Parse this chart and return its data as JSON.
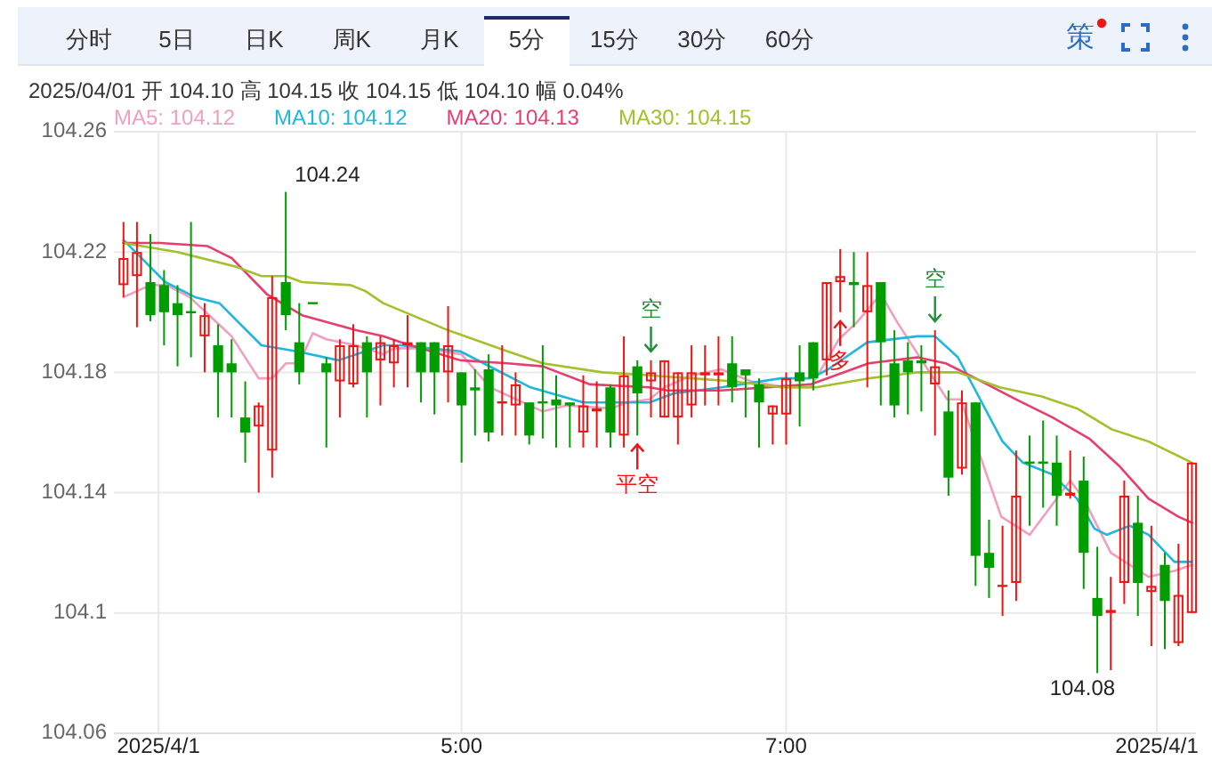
{
  "chart_data": {
    "type": "candlestick",
    "subtitle": "2025/04/01 开 104.10 高 104.15 收 104.15 低 104.10 幅 0.04%",
    "x": [
      2.917,
      3,
      3.083,
      3.167,
      3.25,
      3.333,
      3.417,
      3.5,
      3.583,
      3.667,
      3.75,
      3.833,
      3.917,
      4,
      4.083,
      4.167,
      4.25,
      4.333,
      4.417,
      4.5,
      4.583,
      4.667,
      4.75,
      4.833,
      4.917,
      5,
      5.083,
      5.167,
      5.25,
      5.333,
      5.417,
      5.5,
      5.583,
      5.667,
      5.75,
      5.833,
      5.917,
      6,
      6.083,
      6.167,
      6.25,
      6.333,
      6.417,
      6.5,
      6.583,
      6.667,
      6.75,
      6.833,
      6.917,
      7,
      7.083,
      7.167,
      7.25,
      7.333,
      7.417,
      7.5,
      7.583,
      7.667,
      7.75,
      7.833,
      7.917,
      8,
      8.083,
      8.167,
      8.25,
      8.333,
      8.417,
      8.5,
      8.583,
      8.667,
      8.75,
      8.833,
      8.917,
      9,
      9.083,
      9.167,
      9.25,
      9.333,
      9.417,
      9.5
    ],
    "ohlc": [
      [
        104.209,
        104.23,
        104.205,
        104.218
      ],
      [
        104.212,
        104.23,
        104.195,
        104.22
      ],
      [
        104.21,
        104.226,
        104.197,
        104.199
      ],
      [
        104.209,
        104.214,
        104.189,
        104.2
      ],
      [
        104.203,
        104.209,
        104.182,
        104.199
      ],
      [
        104.2,
        104.23,
        104.185,
        104.2
      ],
      [
        104.192,
        104.203,
        104.18,
        104.199
      ],
      [
        104.189,
        104.196,
        104.165,
        104.18
      ],
      [
        104.183,
        104.191,
        104.165,
        104.18
      ],
      [
        104.165,
        104.177,
        104.15,
        104.16
      ],
      [
        104.162,
        104.17,
        104.14,
        104.169
      ],
      [
        104.154,
        104.212,
        104.145,
        104.205
      ],
      [
        104.21,
        104.24,
        104.194,
        104.199
      ],
      [
        104.19,
        104.203,
        104.176,
        104.18
      ],
      [
        104.203,
        104.203,
        104.203,
        104.203
      ],
      [
        104.183,
        104.185,
        104.155,
        104.18
      ],
      [
        104.177,
        104.191,
        104.165,
        104.189
      ],
      [
        104.176,
        104.196,
        104.175,
        104.189
      ],
      [
        104.19,
        104.192,
        104.165,
        104.18
      ],
      [
        104.184,
        104.192,
        104.169,
        104.19
      ],
      [
        104.183,
        104.191,
        104.175,
        104.189
      ],
      [
        104.189,
        104.199,
        104.175,
        104.19
      ],
      [
        104.19,
        104.19,
        104.17,
        104.18
      ],
      [
        104.19,
        104.19,
        104.166,
        104.18
      ],
      [
        104.18,
        104.202,
        104.17,
        104.189
      ],
      [
        104.18,
        104.18,
        104.15,
        104.169
      ],
      [
        104.175,
        104.181,
        104.159,
        104.174
      ],
      [
        104.181,
        104.186,
        104.157,
        104.16
      ],
      [
        104.17,
        104.189,
        104.159,
        104.17
      ],
      [
        104.169,
        104.18,
        104.159,
        104.176
      ],
      [
        104.17,
        104.17,
        104.156,
        104.159
      ],
      [
        104.17,
        104.189,
        104.158,
        104.17
      ],
      [
        104.171,
        104.179,
        104.155,
        104.169
      ],
      [
        104.17,
        104.17,
        104.155,
        104.169
      ],
      [
        104.16,
        104.179,
        104.155,
        104.169
      ],
      [
        104.167,
        104.177,
        104.155,
        104.168
      ],
      [
        104.175,
        104.176,
        104.155,
        104.16
      ],
      [
        104.159,
        104.192,
        104.155,
        104.179
      ],
      [
        104.182,
        104.184,
        104.159,
        104.173
      ],
      [
        104.177,
        104.184,
        104.165,
        104.18
      ],
      [
        104.165,
        104.184,
        104.165,
        104.184
      ],
      [
        104.165,
        104.18,
        104.156,
        104.18
      ],
      [
        104.169,
        104.189,
        104.165,
        104.18
      ],
      [
        104.179,
        104.189,
        104.169,
        104.18
      ],
      [
        104.179,
        104.192,
        104.169,
        104.18
      ],
      [
        104.183,
        104.192,
        104.17,
        104.175
      ],
      [
        104.181,
        104.181,
        104.165,
        104.179
      ],
      [
        104.176,
        104.178,
        104.155,
        104.17
      ],
      [
        104.166,
        104.169,
        104.156,
        104.169
      ],
      [
        104.166,
        104.18,
        104.156,
        104.178
      ],
      [
        104.18,
        104.189,
        104.162,
        104.177
      ],
      [
        104.19,
        104.19,
        104.174,
        104.178
      ],
      [
        104.184,
        104.21,
        104.179,
        104.21
      ],
      [
        104.21,
        104.221,
        104.2,
        104.212
      ],
      [
        104.21,
        104.22,
        104.195,
        104.209
      ],
      [
        104.2,
        104.22,
        104.175,
        104.209
      ],
      [
        104.21,
        104.21,
        104.169,
        104.19
      ],
      [
        104.183,
        104.194,
        104.165,
        104.169
      ],
      [
        104.184,
        104.19,
        104.166,
        104.18
      ],
      [
        104.184,
        104.189,
        104.167,
        104.183
      ],
      [
        104.176,
        104.194,
        104.159,
        104.182
      ],
      [
        104.167,
        104.174,
        104.139,
        104.145
      ],
      [
        104.148,
        104.174,
        104.146,
        104.17
      ],
      [
        104.17,
        104.17,
        104.109,
        104.119
      ],
      [
        104.12,
        104.131,
        104.105,
        104.115
      ],
      [
        104.109,
        104.129,
        104.099,
        104.109
      ],
      [
        104.11,
        104.154,
        104.104,
        104.139
      ],
      [
        104.15,
        104.159,
        104.129,
        104.15
      ],
      [
        104.15,
        104.164,
        104.135,
        104.15
      ],
      [
        104.15,
        104.159,
        104.129,
        104.139
      ],
      [
        104.139,
        104.154,
        104.138,
        104.14
      ],
      [
        104.144,
        104.152,
        104.108,
        104.12
      ],
      [
        104.105,
        104.122,
        104.08,
        104.099
      ],
      [
        104.1,
        104.112,
        104.081,
        104.101
      ],
      [
        104.11,
        104.144,
        104.103,
        104.139
      ],
      [
        104.13,
        104.139,
        104.099,
        104.11
      ],
      [
        104.107,
        104.129,
        104.089,
        104.109
      ],
      [
        104.116,
        104.12,
        104.088,
        104.104
      ],
      [
        104.09,
        104.123,
        104.089,
        104.106
      ],
      [
        104.1,
        104.15,
        104.1,
        104.15
      ]
    ],
    "colors": [
      "#f01414",
      "#f01414",
      "#009d00",
      "#009d00",
      "#009d00",
      "#009d00",
      "#f01414",
      "#009d00",
      "#009d00",
      "#009d00",
      "#f01414",
      "#f01414",
      "#009d00",
      "#009d00",
      "#009d00",
      "#009d00",
      "#f01414",
      "#f01414",
      "#009d00",
      "#f01414",
      "#f01414",
      "#f01414",
      "#009d00",
      "#009d00",
      "#f01414",
      "#009d00",
      "#009d00",
      "#009d00",
      "#f01414",
      "#f01414",
      "#009d00",
      "#009d00",
      "#009d00",
      "#009d00",
      "#f01414",
      "#f01414",
      "#009d00",
      "#f01414",
      "#009d00",
      "#f01414",
      "#f01414",
      "#f01414",
      "#f01414",
      "#f01414",
      "#f01414",
      "#009d00",
      "#009d00",
      "#009d00",
      "#f01414",
      "#f01414",
      "#009d00",
      "#009d00",
      "#f01414",
      "#f01414",
      "#009d00",
      "#f01414",
      "#009d00",
      "#009d00",
      "#009d00",
      "#009d00",
      "#f01414",
      "#009d00",
      "#f01414",
      "#009d00",
      "#009d00",
      "#f01414",
      "#f01414",
      "#009d00",
      "#009d00",
      "#009d00",
      "#f01414",
      "#009d00",
      "#009d00",
      "#f01414",
      "#f01414",
      "#009d00",
      "#f01414",
      "#009d00",
      "#f01414",
      "#f01414"
    ],
    "series": [
      {
        "name": "MA5: 104.12",
        "type": "line",
        "color": "#f29fbd",
        "x": [
          2.917,
          3.083,
          3.183,
          3.325,
          3.583,
          3.75,
          3.833,
          3.917,
          4.0,
          4.083,
          4.167,
          4.35,
          4.517,
          4.583,
          4.767,
          5.0,
          5.175,
          5.5,
          5.65,
          5.925,
          6.017,
          6.158,
          6.25,
          6.417,
          6.6,
          6.783,
          7.0,
          7.15,
          7.325,
          7.442,
          7.583,
          7.692,
          7.992,
          8.075,
          8.325,
          8.5,
          8.75,
          8.833,
          9.0,
          9.233,
          9.392,
          9.5
        ],
        "values": [
          104.205,
          104.209,
          104.209,
          104.205,
          104.192,
          104.178,
          104.178,
          104.183,
          104.183,
          104.193,
          104.191,
          104.189,
          104.186,
          104.188,
          104.188,
          104.186,
          104.175,
          104.167,
          104.169,
          104.168,
          104.17,
          104.171,
          104.175,
          104.179,
          104.181,
          104.177,
          104.175,
          104.175,
          104.191,
          104.197,
          104.206,
          104.196,
          104.171,
          104.171,
          104.132,
          104.126,
          104.144,
          104.138,
          104.12,
          104.112,
          104.114,
          104.116
        ]
      },
      {
        "name": "MA10: 104.12",
        "type": "line",
        "color": "#1fb7e0",
        "x": [
          2.917,
          3.175,
          3.358,
          3.508,
          3.767,
          3.983,
          4.242,
          4.517,
          4.625,
          4.992,
          5.208,
          5.425,
          5.75,
          6.158,
          6.308,
          6.6,
          6.967,
          7.15,
          7.258,
          7.5,
          7.808,
          7.917,
          8.058,
          8.333,
          8.458,
          8.642,
          8.792,
          8.9,
          8.975,
          9.117,
          9.233,
          9.392,
          9.5
        ],
        "values": [
          104.224,
          104.21,
          104.205,
          104.203,
          104.189,
          104.187,
          104.184,
          104.189,
          104.189,
          104.187,
          104.181,
          104.175,
          104.17,
          104.17,
          104.173,
          104.175,
          104.178,
          104.178,
          104.181,
          104.19,
          104.192,
          104.192,
          104.185,
          104.157,
          104.15,
          104.146,
          104.138,
          104.128,
          104.126,
          104.129,
          104.126,
          104.117,
          104.117
        ]
      },
      {
        "name": "MA20: 104.13",
        "type": "line",
        "color": "#e83e6f",
        "x": [
          2.917,
          3.142,
          3.433,
          3.583,
          3.8,
          4.017,
          4.35,
          4.517,
          4.625,
          4.992,
          5.283,
          5.5,
          5.792,
          6.158,
          6.267,
          6.6,
          7.15,
          7.508,
          7.808,
          7.983,
          8.167,
          8.417,
          8.642,
          8.867,
          9.05,
          9.233,
          9.417,
          9.5
        ],
        "values": [
          104.223,
          104.223,
          104.222,
          104.218,
          104.206,
          104.199,
          104.194,
          104.192,
          104.19,
          104.184,
          104.183,
          104.182,
          104.176,
          104.175,
          104.174,
          104.174,
          104.176,
          104.183,
          104.185,
          104.183,
          104.178,
          104.171,
          104.165,
          104.158,
          104.149,
          104.138,
          104.132,
          104.13
        ]
      },
      {
        "name": "MA30: 104.15",
        "type": "line",
        "color": "#a2c12a",
        "x": [
          2.917,
          3.25,
          3.617,
          3.767,
          3.917,
          4.017,
          4.317,
          4.408,
          4.517,
          4.917,
          5.283,
          5.5,
          5.867,
          6.158,
          6.417,
          6.675,
          6.967,
          7.183,
          7.508,
          7.808,
          8.058,
          8.317,
          8.575,
          8.792,
          9.008,
          9.233,
          9.5
        ],
        "values": [
          104.223,
          104.22,
          104.215,
          104.212,
          104.212,
          104.21,
          104.209,
          104.207,
          104.203,
          104.194,
          104.187,
          104.183,
          104.18,
          104.179,
          104.178,
          104.177,
          104.175,
          104.175,
          104.178,
          104.18,
          104.18,
          104.175,
          104.172,
          104.168,
          104.161,
          104.157,
          104.15
        ]
      }
    ],
    "xlim": [
      2.858,
      9.525
    ],
    "xticks": [
      {
        "value": 3.133,
        "label": "2025/4/1"
      },
      {
        "value": 5,
        "label": "5:00"
      },
      {
        "value": 7,
        "label": "7:00"
      },
      {
        "value": 9.284,
        "label": "2025/4/1"
      }
    ],
    "ylim": [
      104.06,
      104.26
    ],
    "yticks": [
      104.06,
      104.1,
      104.14,
      104.18,
      104.22,
      104.26
    ],
    "grid": true,
    "legend": "top left",
    "annotations": [
      "分时",
      "5日",
      "日K",
      "周K",
      "月K",
      "5分",
      "15分",
      "30分",
      "60分",
      "策",
      {
        "text": "104.24",
        "x": 3.917,
        "y": 104.24
      },
      {
        "text": "空",
        "x": 6.167,
        "y": 104.184
      },
      {
        "text": "平空",
        "x": 6.083,
        "y": 104.159
      },
      {
        "text": "多",
        "x": 7.333,
        "y": 104.2
      },
      {
        "text": "空",
        "x": 7.917,
        "y": 104.194
      },
      {
        "text": "104.08",
        "x": 8.917,
        "y": 104.08
      }
    ]
  }
}
